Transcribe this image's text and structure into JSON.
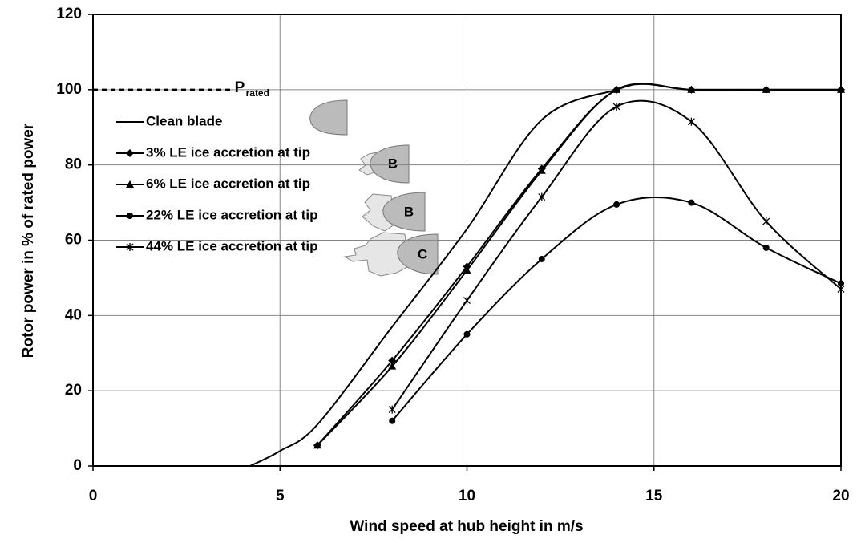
{
  "chart_data": {
    "type": "line",
    "xlabel": "Wind speed at hub height in m/s",
    "ylabel": "Rotor power in % of rated power",
    "xlim": [
      0,
      20
    ],
    "ylim": [
      0,
      120
    ],
    "xticks": [
      0,
      5,
      10,
      15,
      20
    ],
    "yticks": [
      0,
      20,
      40,
      60,
      80,
      100,
      120
    ],
    "grid": true,
    "reference_line": {
      "label": "P",
      "subscript": "rated",
      "y": 100,
      "x": [
        0,
        3.7
      ]
    },
    "series": [
      {
        "name": "Clean blade",
        "marker": "none",
        "color": "#000000",
        "x": [
          4.2,
          5,
          6,
          8,
          10,
          12,
          14,
          14.8,
          16,
          18,
          20
        ],
        "values": [
          0,
          4,
          11,
          37,
          63,
          92,
          100,
          101.5,
          100,
          100,
          100
        ]
      },
      {
        "name": "3% LE ice accretion at tip",
        "marker": "diamond",
        "color": "#000000",
        "x": [
          6,
          8,
          10,
          12,
          14,
          16,
          18,
          20
        ],
        "values": [
          5.5,
          28,
          53,
          79,
          100,
          100,
          100,
          100
        ]
      },
      {
        "name": "6% LE ice accretion at tip",
        "marker": "triangle",
        "color": "#000000",
        "x": [
          6,
          8,
          10,
          12,
          14,
          16,
          18,
          20
        ],
        "values": [
          5.5,
          26.5,
          52,
          78.5,
          100,
          100,
          100,
          100
        ]
      },
      {
        "name": "22% LE ice accretion at tip",
        "marker": "circle",
        "color": "#000000",
        "x": [
          8,
          10,
          12,
          14,
          16,
          18,
          20
        ],
        "values": [
          12,
          35,
          55,
          69.5,
          70,
          58,
          48.5
        ]
      },
      {
        "name": "44% LE ice accretion at tip",
        "marker": "star",
        "color": "#000000",
        "x": [
          8,
          10,
          12,
          14,
          16,
          18,
          20
        ],
        "values": [
          15,
          44,
          71.5,
          95.5,
          91.5,
          65,
          47
        ]
      }
    ],
    "annotations": [
      "B",
      "B",
      "C"
    ]
  }
}
